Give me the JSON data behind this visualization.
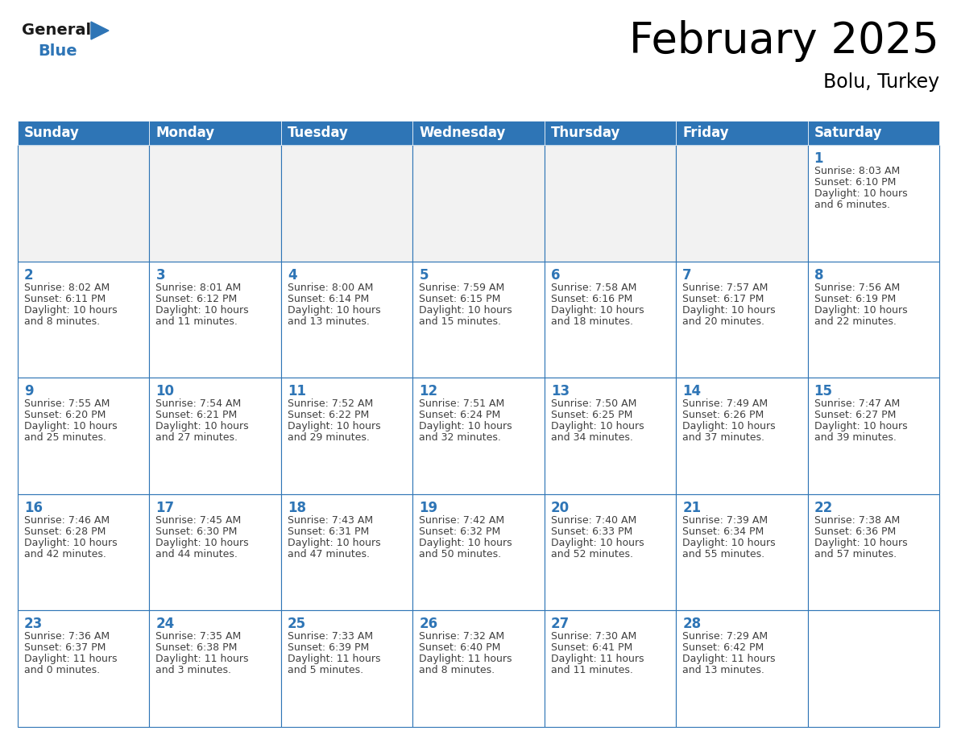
{
  "title": "February 2025",
  "subtitle": "Bolu, Turkey",
  "header_bg": "#2E75B6",
  "header_text_color": "#FFFFFF",
  "cell_bg": "#FFFFFF",
  "empty_cell_bg": "#F2F2F2",
  "cell_border_color": "#2E75B6",
  "day_number_color": "#2E75B6",
  "info_text_color": "#404040",
  "days_of_week": [
    "Sunday",
    "Monday",
    "Tuesday",
    "Wednesday",
    "Thursday",
    "Friday",
    "Saturday"
  ],
  "calendar_data": [
    [
      null,
      null,
      null,
      null,
      null,
      null,
      {
        "day": 1,
        "sunrise": "8:03 AM",
        "sunset": "6:10 PM",
        "daylight": "10 hours\nand 6 minutes."
      }
    ],
    [
      {
        "day": 2,
        "sunrise": "8:02 AM",
        "sunset": "6:11 PM",
        "daylight": "10 hours\nand 8 minutes."
      },
      {
        "day": 3,
        "sunrise": "8:01 AM",
        "sunset": "6:12 PM",
        "daylight": "10 hours\nand 11 minutes."
      },
      {
        "day": 4,
        "sunrise": "8:00 AM",
        "sunset": "6:14 PM",
        "daylight": "10 hours\nand 13 minutes."
      },
      {
        "day": 5,
        "sunrise": "7:59 AM",
        "sunset": "6:15 PM",
        "daylight": "10 hours\nand 15 minutes."
      },
      {
        "day": 6,
        "sunrise": "7:58 AM",
        "sunset": "6:16 PM",
        "daylight": "10 hours\nand 18 minutes."
      },
      {
        "day": 7,
        "sunrise": "7:57 AM",
        "sunset": "6:17 PM",
        "daylight": "10 hours\nand 20 minutes."
      },
      {
        "day": 8,
        "sunrise": "7:56 AM",
        "sunset": "6:19 PM",
        "daylight": "10 hours\nand 22 minutes."
      }
    ],
    [
      {
        "day": 9,
        "sunrise": "7:55 AM",
        "sunset": "6:20 PM",
        "daylight": "10 hours\nand 25 minutes."
      },
      {
        "day": 10,
        "sunrise": "7:54 AM",
        "sunset": "6:21 PM",
        "daylight": "10 hours\nand 27 minutes."
      },
      {
        "day": 11,
        "sunrise": "7:52 AM",
        "sunset": "6:22 PM",
        "daylight": "10 hours\nand 29 minutes."
      },
      {
        "day": 12,
        "sunrise": "7:51 AM",
        "sunset": "6:24 PM",
        "daylight": "10 hours\nand 32 minutes."
      },
      {
        "day": 13,
        "sunrise": "7:50 AM",
        "sunset": "6:25 PM",
        "daylight": "10 hours\nand 34 minutes."
      },
      {
        "day": 14,
        "sunrise": "7:49 AM",
        "sunset": "6:26 PM",
        "daylight": "10 hours\nand 37 minutes."
      },
      {
        "day": 15,
        "sunrise": "7:47 AM",
        "sunset": "6:27 PM",
        "daylight": "10 hours\nand 39 minutes."
      }
    ],
    [
      {
        "day": 16,
        "sunrise": "7:46 AM",
        "sunset": "6:28 PM",
        "daylight": "10 hours\nand 42 minutes."
      },
      {
        "day": 17,
        "sunrise": "7:45 AM",
        "sunset": "6:30 PM",
        "daylight": "10 hours\nand 44 minutes."
      },
      {
        "day": 18,
        "sunrise": "7:43 AM",
        "sunset": "6:31 PM",
        "daylight": "10 hours\nand 47 minutes."
      },
      {
        "day": 19,
        "sunrise": "7:42 AM",
        "sunset": "6:32 PM",
        "daylight": "10 hours\nand 50 minutes."
      },
      {
        "day": 20,
        "sunrise": "7:40 AM",
        "sunset": "6:33 PM",
        "daylight": "10 hours\nand 52 minutes."
      },
      {
        "day": 21,
        "sunrise": "7:39 AM",
        "sunset": "6:34 PM",
        "daylight": "10 hours\nand 55 minutes."
      },
      {
        "day": 22,
        "sunrise": "7:38 AM",
        "sunset": "6:36 PM",
        "daylight": "10 hours\nand 57 minutes."
      }
    ],
    [
      {
        "day": 23,
        "sunrise": "7:36 AM",
        "sunset": "6:37 PM",
        "daylight": "11 hours\nand 0 minutes."
      },
      {
        "day": 24,
        "sunrise": "7:35 AM",
        "sunset": "6:38 PM",
        "daylight": "11 hours\nand 3 minutes."
      },
      {
        "day": 25,
        "sunrise": "7:33 AM",
        "sunset": "6:39 PM",
        "daylight": "11 hours\nand 5 minutes."
      },
      {
        "day": 26,
        "sunrise": "7:32 AM",
        "sunset": "6:40 PM",
        "daylight": "11 hours\nand 8 minutes."
      },
      {
        "day": 27,
        "sunrise": "7:30 AM",
        "sunset": "6:41 PM",
        "daylight": "11 hours\nand 11 minutes."
      },
      {
        "day": 28,
        "sunrise": "7:29 AM",
        "sunset": "6:42 PM",
        "daylight": "11 hours\nand 13 minutes."
      },
      null
    ]
  ],
  "logo_general_color": "#1a1a1a",
  "logo_blue_color": "#2E75B6",
  "title_fontsize": 38,
  "subtitle_fontsize": 17,
  "header_fontsize": 12,
  "day_number_fontsize": 12,
  "info_fontsize": 9
}
